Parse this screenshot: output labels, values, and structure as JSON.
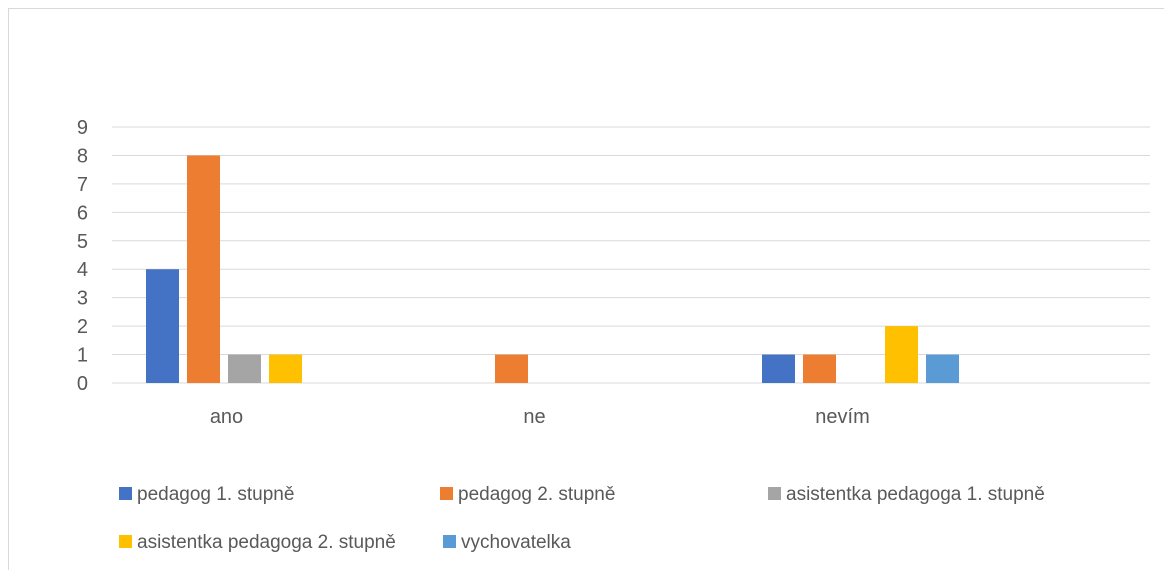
{
  "chart_data": {
    "type": "bar",
    "categories": [
      "ano",
      "ne",
      "nevím"
    ],
    "series": [
      {
        "name": "pedagog 1. stupně",
        "color": "#4472C4",
        "values": [
          4,
          0,
          1
        ]
      },
      {
        "name": "pedagog 2. stupně",
        "color": "#ED7D31",
        "values": [
          8,
          1,
          1
        ]
      },
      {
        "name": "asistentka pedagoga 1. stupně",
        "color": "#A5A5A5",
        "values": [
          1,
          0,
          0
        ]
      },
      {
        "name": "asistentka pedagoga 2. stupně",
        "color": "#FFC000",
        "values": [
          1,
          0,
          2
        ]
      },
      {
        "name": "vychovatelka",
        "color": "#5B9BD5",
        "values": [
          0,
          0,
          1
        ]
      }
    ],
    "ylim": [
      0,
      9
    ],
    "yticks": [
      0,
      1,
      2,
      3,
      4,
      5,
      6,
      7,
      8,
      9
    ],
    "grid": true,
    "legend_position": "bottom"
  }
}
